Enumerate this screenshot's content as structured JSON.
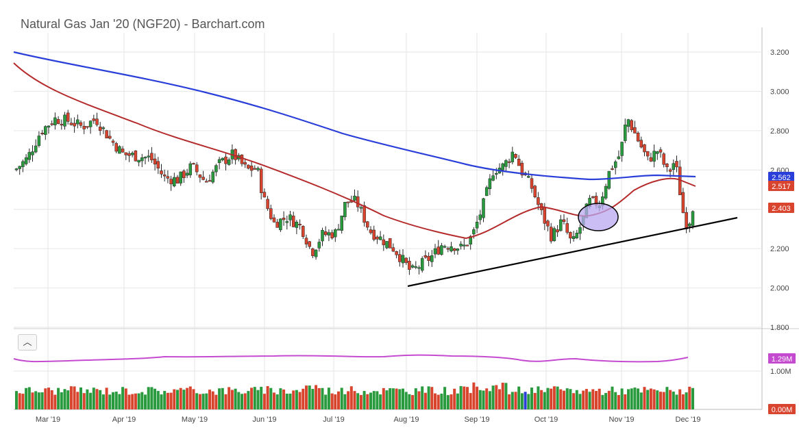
{
  "title": "Natural Gas Jan '20 (NGF20) - Barchart.com",
  "collapse_icon": "chevron-up-icon",
  "colors": {
    "up": "#2a9a3e",
    "down": "#d9442e",
    "ma_fast": "#b52a2a",
    "ma_slow": "#2a3fd9",
    "volume_ma": "#c44ad0",
    "trendline": "#000000",
    "highlight": "#b8a8f0",
    "grid": "#e6e6e6"
  },
  "chart_data": [
    {
      "type": "candlestick",
      "ylim": [
        1.8,
        3.3
      ],
      "yticks": [
        "3.200",
        "3.000",
        "2.800",
        "2.600",
        "2.400",
        "2.200",
        "2.000",
        "1.800"
      ],
      "price_labels": [
        {
          "text": "2.562",
          "series": "blue"
        },
        {
          "text": "2.517",
          "series": "red"
        },
        {
          "text": "2.403",
          "series": "last"
        }
      ],
      "grid": true,
      "annotations": [
        "ascending trendline",
        "highlighted ellipse"
      ]
    },
    {
      "type": "bar",
      "yticks": [
        "1.29M",
        "1.00M",
        "0.00M"
      ],
      "grid": true
    }
  ],
  "x_labels": [
    "Mar '19",
    "Apr '19",
    "May '19",
    "Jun '19",
    "Jul '19",
    "Aug '19",
    "Sep '19",
    "Oct '19",
    "Nov '19",
    "Dec '19"
  ]
}
